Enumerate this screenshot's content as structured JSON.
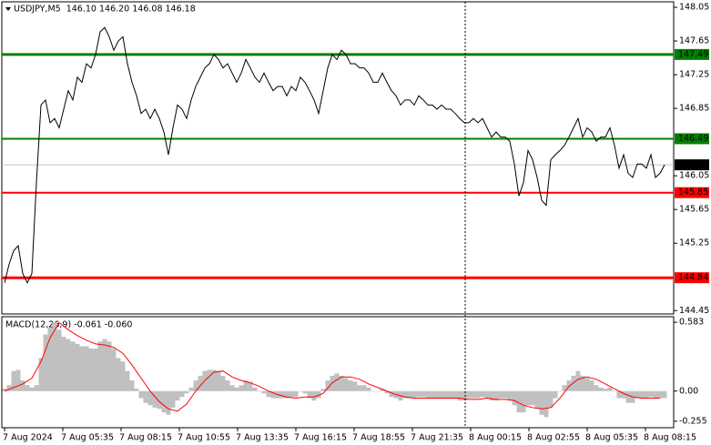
{
  "chart_data": [
    {
      "type": "line",
      "title": "USDJPY,M5  146.10 146.20 146.08 146.18",
      "xlim": [
        -1.5,
        367.5
      ],
      "ylim": [
        144.41,
        148.115
      ],
      "yticks": [
        148.05,
        147.65,
        147.25,
        146.85,
        146.05,
        145.65,
        145.25,
        144.45
      ],
      "levels": [
        {
          "value": 147.49,
          "color": "#008000"
        },
        {
          "value": 146.49,
          "color": "#008000"
        },
        {
          "value": 145.85,
          "color": "#ff0000"
        },
        {
          "value": 144.84,
          "color": "#ff0000"
        }
      ],
      "last_price": 146.18,
      "separator": 253,
      "series": [
        {
          "type": "line",
          "color": "#000000",
          "x": [
            0,
            2.5,
            5,
            7.5,
            10,
            12.5,
            15,
            17.5,
            20,
            22.5,
            25,
            27.5,
            30,
            32.5,
            35,
            37.5,
            40,
            42.5,
            45,
            47.5,
            50,
            52.5,
            55,
            57.5,
            60,
            62.5,
            65,
            67.5,
            70,
            72.5,
            75,
            77.5,
            80,
            82.5,
            85,
            87.5,
            90,
            92.5,
            95,
            97.5,
            100,
            102.5,
            105,
            107.5,
            110,
            112.5,
            115,
            117.5,
            120,
            122.5,
            125,
            127.5,
            130,
            132.5,
            135,
            137.5,
            140,
            142.5,
            145,
            147.5,
            150,
            152.5,
            155,
            157.5,
            160,
            162.5,
            165,
            167.5,
            170,
            172.5,
            175,
            177.5,
            180,
            182.5,
            185,
            187.5,
            190,
            192.5,
            195,
            197.5,
            200,
            202.5,
            205,
            207.5,
            210,
            212.5,
            215,
            217.5,
            220,
            222.5,
            225,
            227.5,
            230,
            232.5,
            235,
            237.5,
            240,
            242.5,
            245,
            247.5,
            250,
            252.5,
            255,
            257.5,
            260,
            262.5,
            265,
            267.5,
            270,
            272.5,
            275,
            277.5,
            280,
            282.5,
            285,
            287.5,
            290,
            292.5,
            295,
            297.5,
            300,
            302.5,
            305,
            307.5,
            310,
            312.5,
            315,
            317.5,
            320,
            322.5,
            325,
            327.5,
            330,
            332.5,
            335,
            337.5,
            340,
            342.5,
            345,
            347.5,
            350,
            352.5,
            355,
            357.5,
            360,
            362.5
          ],
          "values": [
            144.78,
            145.0,
            145.16,
            145.22,
            144.89,
            144.78,
            144.89,
            145.97,
            146.89,
            146.95,
            146.68,
            146.73,
            146.62,
            146.84,
            147.06,
            146.95,
            147.22,
            147.16,
            147.38,
            147.33,
            147.49,
            147.76,
            147.81,
            147.7,
            147.54,
            147.65,
            147.7,
            147.38,
            147.16,
            147.0,
            146.79,
            146.84,
            146.73,
            146.84,
            146.73,
            146.57,
            146.3,
            146.62,
            146.89,
            146.84,
            146.73,
            146.95,
            147.11,
            147.22,
            147.33,
            147.38,
            147.49,
            147.43,
            147.33,
            147.38,
            147.27,
            147.16,
            147.27,
            147.43,
            147.33,
            147.22,
            147.16,
            147.27,
            147.16,
            147.06,
            147.11,
            147.11,
            147.0,
            147.11,
            147.06,
            147.22,
            147.16,
            147.06,
            146.95,
            146.79,
            147.06,
            147.33,
            147.49,
            147.43,
            147.54,
            147.49,
            147.38,
            147.38,
            147.33,
            147.33,
            147.27,
            147.16,
            147.16,
            147.27,
            147.16,
            147.06,
            147.0,
            146.89,
            146.95,
            146.95,
            146.89,
            147.0,
            146.95,
            146.89,
            146.89,
            146.84,
            146.89,
            146.84,
            146.84,
            146.79,
            146.73,
            146.68,
            146.68,
            146.73,
            146.68,
            146.73,
            146.62,
            146.51,
            146.57,
            146.51,
            146.51,
            146.46,
            146.19,
            145.81,
            145.97,
            146.35,
            146.24,
            146.03,
            145.76,
            145.7,
            146.24,
            146.3,
            146.35,
            146.41,
            146.51,
            146.62,
            146.73,
            146.51,
            146.62,
            146.57,
            146.46,
            146.51,
            146.51,
            146.62,
            146.41,
            146.14,
            146.3,
            146.08,
            146.03,
            146.19,
            146.19,
            146.14,
            146.3,
            146.03,
            146.08,
            146.18
          ]
        }
      ]
    },
    {
      "type": "combo",
      "title": "MACD(12,26,9) -0.061 -0.060",
      "xlim": [
        -1.5,
        367.5
      ],
      "ylim": [
        -0.31,
        0.63
      ],
      "yticks": [
        0.583,
        {
          "value": 0,
          "label": "0.00"
        },
        -0.255
      ],
      "xticks": [
        {
          "value": 0,
          "label": "7 Aug 2024"
        },
        {
          "value": 32,
          "label": "7 Aug 05:35"
        },
        {
          "value": 64,
          "label": "7 Aug 08:15"
        },
        {
          "value": 96,
          "label": "7 Aug 10:55"
        },
        {
          "value": 128,
          "label": "7 Aug 13:35"
        },
        {
          "value": 160,
          "label": "7 Aug 16:15"
        },
        {
          "value": 192,
          "label": "7 Aug 18:55"
        },
        {
          "value": 224,
          "label": "7 Aug 21:35"
        },
        {
          "value": 256,
          "label": "8 Aug 00:15"
        },
        {
          "value": 288,
          "label": "8 Aug 02:55"
        },
        {
          "value": 320,
          "label": "8 Aug 05:35"
        },
        {
          "value": 352,
          "label": "8 Aug 08:15"
        }
      ],
      "series": [
        {
          "type": "bar",
          "color": "#c0c0c0",
          "x": [
            0,
            2.5,
            5,
            7.5,
            10,
            12.5,
            15,
            17.5,
            20,
            22.5,
            25,
            27.5,
            30,
            32.5,
            35,
            37.5,
            40,
            42.5,
            45,
            47.5,
            50,
            52.5,
            55,
            57.5,
            60,
            62.5,
            65,
            67.5,
            70,
            72.5,
            75,
            77.5,
            80,
            82.5,
            85,
            87.5,
            90,
            92.5,
            95,
            97.5,
            100,
            102.5,
            105,
            107.5,
            110,
            112.5,
            115,
            117.5,
            120,
            122.5,
            125,
            127.5,
            130,
            132.5,
            135,
            137.5,
            140,
            142.5,
            145,
            147.5,
            150,
            152.5,
            155,
            157.5,
            160,
            162.5,
            165,
            167.5,
            170,
            172.5,
            175,
            177.5,
            180,
            182.5,
            185,
            187.5,
            190,
            192.5,
            195,
            197.5,
            200,
            202.5,
            205,
            207.5,
            210,
            212.5,
            215,
            217.5,
            220,
            222.5,
            225,
            227.5,
            230,
            232.5,
            235,
            237.5,
            240,
            242.5,
            245,
            247.5,
            250,
            252.5,
            255,
            257.5,
            260,
            262.5,
            265,
            267.5,
            270,
            272.5,
            275,
            277.5,
            280,
            282.5,
            285,
            287.5,
            290,
            292.5,
            295,
            297.5,
            300,
            302.5,
            305,
            307.5,
            310,
            312.5,
            315,
            317.5,
            320,
            322.5,
            325,
            327.5,
            330,
            332.5,
            335,
            337.5,
            340,
            342.5,
            345,
            347.5,
            350,
            352.5,
            355,
            357.5,
            360,
            362.5
          ],
          "values": [
            0.02,
            0.05,
            0.17,
            0.18,
            0.09,
            0.05,
            0.03,
            0.05,
            0.28,
            0.48,
            0.54,
            0.58,
            0.52,
            0.46,
            0.44,
            0.42,
            0.4,
            0.38,
            0.38,
            0.36,
            0.36,
            0.42,
            0.44,
            0.42,
            0.36,
            0.28,
            0.25,
            0.17,
            0.09,
            0.02,
            -0.06,
            -0.1,
            -0.12,
            -0.14,
            -0.15,
            -0.18,
            -0.2,
            -0.14,
            -0.08,
            -0.05,
            -0.02,
            0.03,
            0.09,
            0.13,
            0.17,
            0.18,
            0.18,
            0.17,
            0.13,
            0.09,
            0.05,
            0.03,
            0.05,
            0.09,
            0.08,
            0.03,
            0.0,
            -0.02,
            -0.05,
            -0.06,
            -0.06,
            -0.06,
            -0.06,
            -0.05,
            -0.05,
            0.0,
            -0.02,
            -0.06,
            -0.08,
            -0.06,
            0.02,
            0.09,
            0.13,
            0.15,
            0.13,
            0.11,
            0.09,
            0.08,
            0.05,
            0.05,
            0.03,
            0.0,
            0.0,
            0.02,
            -0.02,
            -0.05,
            -0.06,
            -0.08,
            -0.06,
            -0.06,
            -0.06,
            -0.05,
            -0.05,
            -0.06,
            -0.06,
            -0.06,
            -0.06,
            -0.06,
            -0.06,
            -0.06,
            -0.08,
            -0.08,
            -0.06,
            -0.06,
            -0.06,
            -0.05,
            -0.06,
            -0.08,
            -0.08,
            -0.06,
            -0.06,
            -0.08,
            -0.12,
            -0.18,
            -0.18,
            -0.12,
            -0.12,
            -0.15,
            -0.2,
            -0.22,
            -0.14,
            -0.06,
            0.0,
            0.05,
            0.09,
            0.13,
            0.17,
            0.13,
            0.11,
            0.09,
            0.05,
            0.03,
            0.02,
            0.03,
            0.0,
            -0.06,
            -0.06,
            -0.1,
            -0.1,
            -0.06,
            -0.06,
            -0.06,
            -0.05,
            -0.06,
            -0.06,
            -0.06
          ]
        },
        {
          "type": "line",
          "color": "#ff0000",
          "x": [
            0,
            5,
            10,
            15,
            20,
            25,
            30,
            35,
            40,
            45,
            50,
            55,
            60,
            65,
            70,
            75,
            80,
            85,
            90,
            95,
            100,
            105,
            110,
            115,
            120,
            125,
            130,
            135,
            140,
            145,
            150,
            155,
            160,
            165,
            170,
            175,
            180,
            185,
            190,
            195,
            200,
            205,
            210,
            215,
            220,
            225,
            230,
            235,
            240,
            245,
            250,
            255,
            260,
            265,
            270,
            275,
            280,
            285,
            290,
            295,
            300,
            305,
            310,
            315,
            320,
            325,
            330,
            335,
            340,
            345,
            350,
            355,
            360
          ],
          "values": [
            0.0,
            0.03,
            0.06,
            0.11,
            0.25,
            0.45,
            0.58,
            0.52,
            0.47,
            0.43,
            0.4,
            0.39,
            0.37,
            0.32,
            0.22,
            0.11,
            0.0,
            -0.09,
            -0.15,
            -0.17,
            -0.11,
            0.0,
            0.09,
            0.16,
            0.17,
            0.12,
            0.09,
            0.07,
            0.04,
            0.0,
            -0.03,
            -0.05,
            -0.06,
            -0.05,
            -0.05,
            -0.02,
            0.07,
            0.12,
            0.12,
            0.1,
            0.06,
            0.03,
            0.0,
            -0.03,
            -0.05,
            -0.06,
            -0.06,
            -0.06,
            -0.06,
            -0.06,
            -0.06,
            -0.07,
            -0.07,
            -0.06,
            -0.07,
            -0.07,
            -0.08,
            -0.12,
            -0.14,
            -0.15,
            -0.14,
            -0.06,
            0.04,
            0.1,
            0.12,
            0.1,
            0.06,
            0.02,
            -0.02,
            -0.05,
            -0.06,
            -0.06,
            -0.06
          ]
        }
      ]
    }
  ]
}
